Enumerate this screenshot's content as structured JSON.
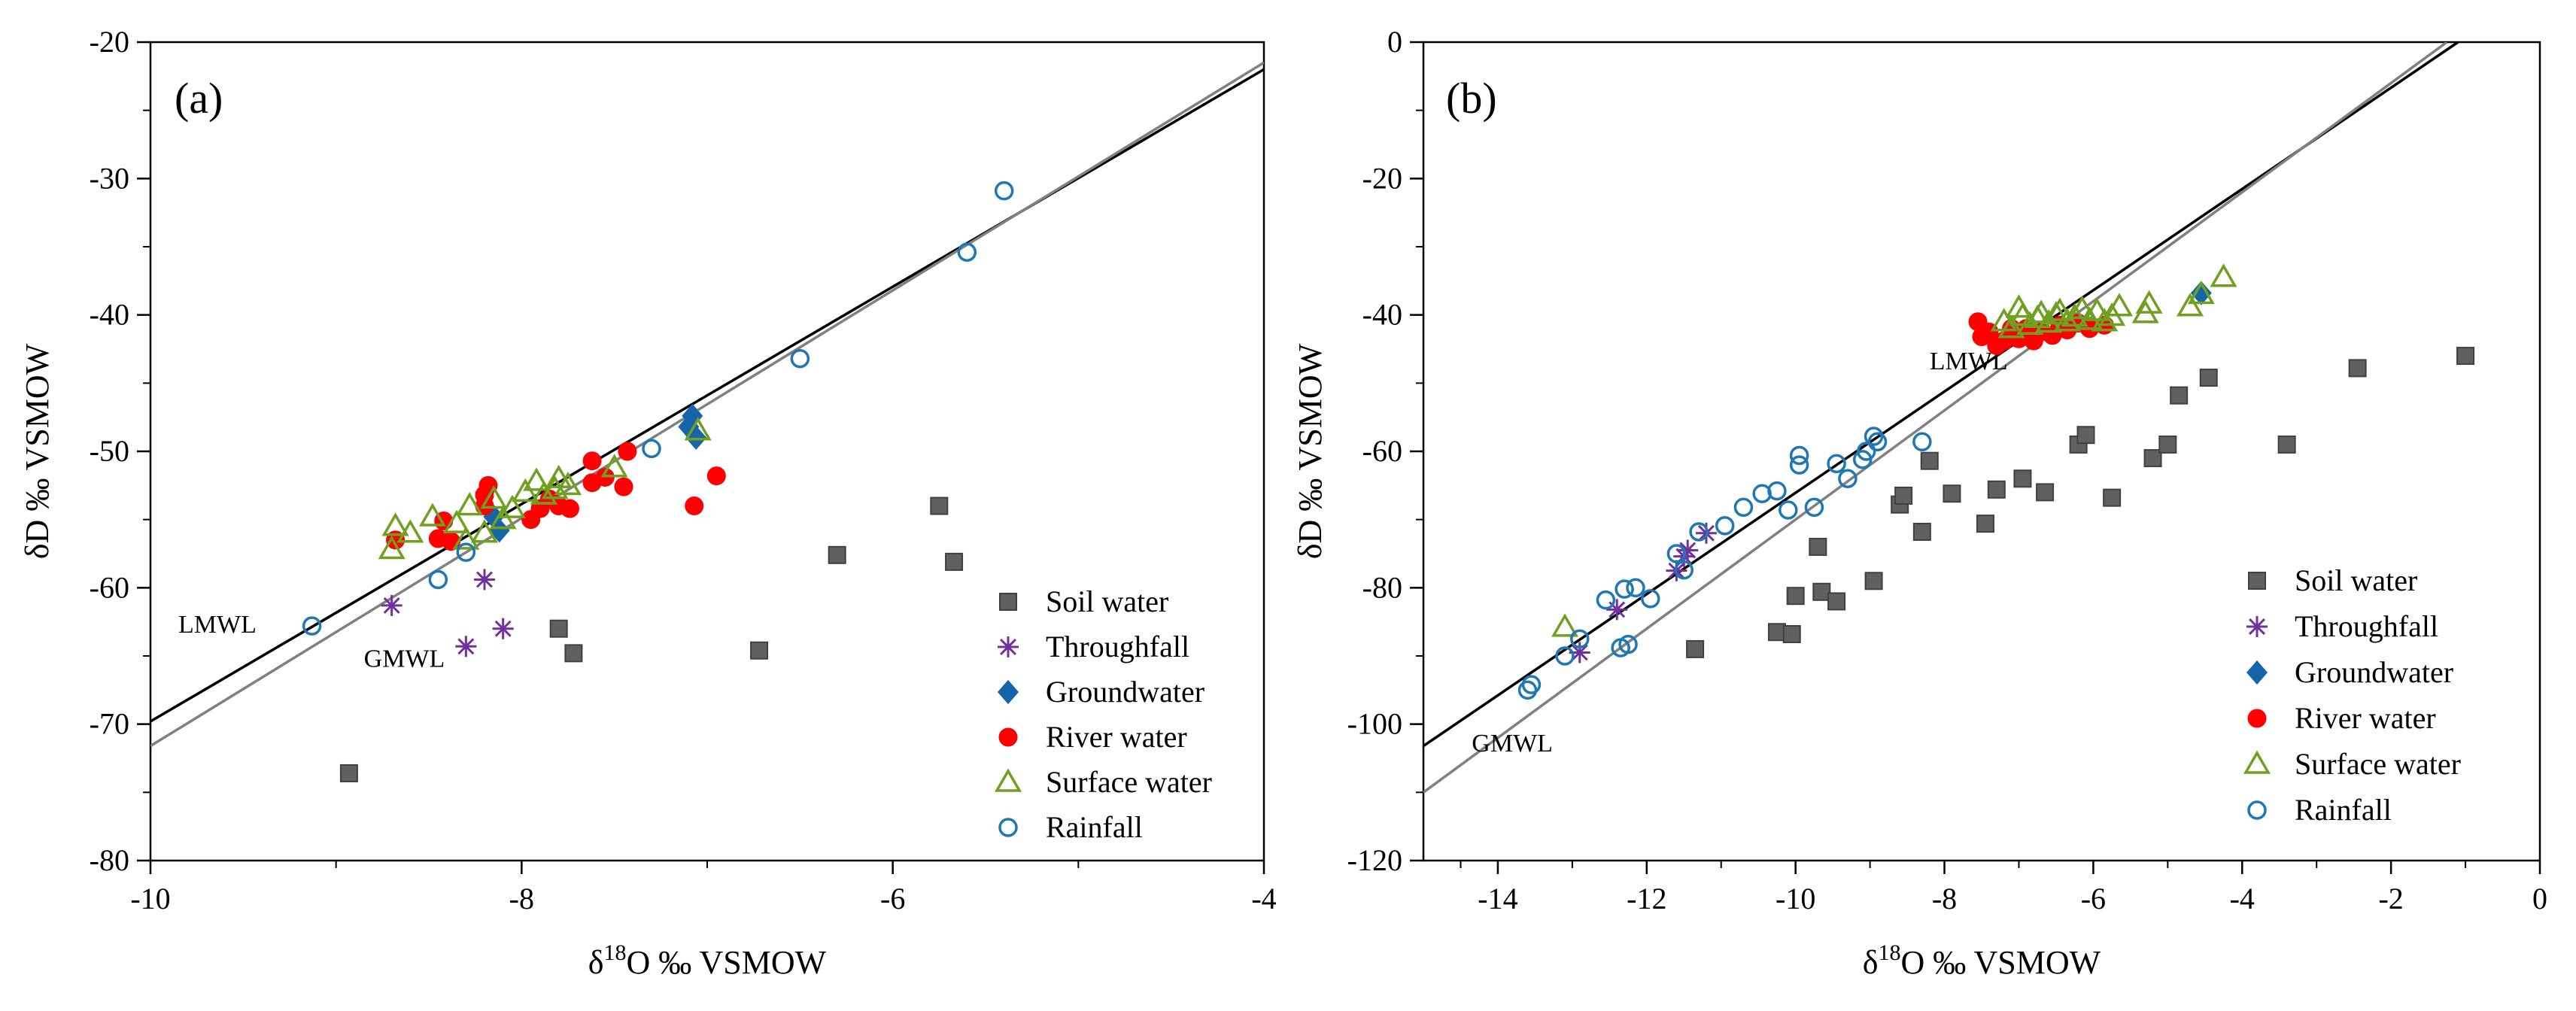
{
  "chart_data": [
    {
      "type": "scatter",
      "panel_label": "(a)",
      "xlabel_prefix": "δ",
      "xlabel_sup": "18",
      "xlabel_suffix": "O ‰ VSMOW",
      "ylabel": "δD ‰ VSMOW",
      "xlim": [
        -10,
        -4
      ],
      "ylim": [
        -80,
        -20
      ],
      "xticks": [
        -10,
        -8,
        -6,
        -4
      ],
      "yticks": [
        -80,
        -70,
        -60,
        -50,
        -40,
        -30,
        -20
      ],
      "xtick_labels": [
        "-10",
        "-8",
        "-6",
        "-4"
      ],
      "ytick_labels": [
        "-80",
        "-70",
        "-60",
        "-50",
        "-40",
        "-30",
        "-20"
      ],
      "legend_position": "bottom-right",
      "lines": [
        {
          "name": "LMWL",
          "label": "LMWL",
          "color": "#000000",
          "x": [
            -10,
            -4
          ],
          "y": [
            -69.8,
            -22.0
          ],
          "label_at": [
            -9.85,
            -63.3
          ]
        },
        {
          "name": "GMWL",
          "label": "GMWL",
          "color": "#808080",
          "x": [
            -10,
            -4
          ],
          "y": [
            -71.6,
            -21.5
          ],
          "label_at": [
            -8.85,
            -65.8
          ]
        }
      ],
      "series": [
        {
          "name": "Soil water",
          "marker": "square",
          "color": "#606060",
          "stroke": "#404040",
          "x": [
            -5.75,
            -5.67,
            -6.3,
            -6.72,
            -7.8,
            -7.72,
            -8.93
          ],
          "y": [
            -54.0,
            -58.1,
            -57.6,
            -64.6,
            -63.0,
            -64.8,
            -73.6
          ]
        },
        {
          "name": "Throughfall",
          "marker": "asterisk",
          "color": "#7030a0",
          "stroke": "#7030a0",
          "x": [
            -8.7,
            -8.2,
            -8.3,
            -8.1
          ],
          "y": [
            -61.3,
            -59.4,
            -64.3,
            -63.0
          ]
        },
        {
          "name": "Groundwater",
          "marker": "diamond",
          "color": "#1565a8",
          "stroke": "#1565a8",
          "x": [
            -8.15,
            -8.12,
            -7.1,
            -7.08,
            -7.06
          ],
          "y": [
            -54.8,
            -55.8,
            -48.2,
            -47.4,
            -49.0
          ]
        },
        {
          "name": "River water",
          "marker": "circle-filled",
          "color": "#ff0000",
          "stroke": "#ff0000",
          "x": [
            -8.68,
            -8.45,
            -8.42,
            -8.38,
            -8.2,
            -8.2,
            -8.18,
            -7.95,
            -7.9,
            -7.85,
            -7.8,
            -7.74,
            -7.62,
            -7.62,
            -7.55,
            -7.45,
            -7.43,
            -7.07,
            -6.95
          ],
          "y": [
            -56.5,
            -56.4,
            -55.1,
            -56.6,
            -53.2,
            -54.0,
            -52.5,
            -55.0,
            -54.2,
            -53.5,
            -54.0,
            -54.2,
            -50.7,
            -52.3,
            -51.9,
            -52.6,
            -50.0,
            -54.0,
            -51.8
          ]
        },
        {
          "name": "Surface water",
          "marker": "triangle-open",
          "color": "#70a020",
          "stroke": "#70a020",
          "x": [
            -8.7,
            -8.68,
            -8.6,
            -8.48,
            -8.35,
            -8.3,
            -8.28,
            -8.2,
            -8.15,
            -8.1,
            -8.05,
            -7.98,
            -7.92,
            -7.88,
            -7.82,
            -7.8,
            -7.75,
            -7.5,
            -7.05
          ],
          "y": [
            -57.2,
            -55.5,
            -56.0,
            -54.8,
            -55.3,
            -56.5,
            -54.0,
            -56.0,
            -53.5,
            -55.0,
            -54.2,
            -53.0,
            -52.2,
            -53.2,
            -52.8,
            -52.0,
            -52.5,
            -51.2,
            -48.5
          ]
        },
        {
          "name": "Rainfall",
          "marker": "circle-open",
          "color": "#1f77b4",
          "stroke": "#1f77b4",
          "x": [
            -9.13,
            -8.45,
            -8.3,
            -7.3,
            -6.5,
            -5.6,
            -5.4
          ],
          "y": [
            -62.8,
            -59.4,
            -57.4,
            -49.8,
            -43.2,
            -35.4,
            -30.9
          ]
        }
      ]
    },
    {
      "type": "scatter",
      "panel_label": "(b)",
      "xlabel_prefix": "δ",
      "xlabel_sup": "18",
      "xlabel_suffix": "O ‰ VSMOW",
      "ylabel": "δD ‰ VSMOW",
      "xlim": [
        -15,
        0
      ],
      "ylim": [
        -120,
        0
      ],
      "xticks": [
        -14,
        -12,
        -10,
        -8,
        -6,
        -4,
        -2,
        0
      ],
      "yticks": [
        -120,
        -100,
        -80,
        -60,
        -40,
        -20,
        0
      ],
      "xtick_labels": [
        "-14",
        "-12",
        "-10",
        "-8",
        "-6",
        "-4",
        "-2",
        "0"
      ],
      "ytick_labels": [
        "-120",
        "-100",
        "-80",
        "-60",
        "-40",
        "-20",
        "0"
      ],
      "legend_position": "bottom-right",
      "lines": [
        {
          "name": "LMWL",
          "label": "LMWL",
          "color": "#000000",
          "x": [
            -15,
            -1.1
          ],
          "y": [
            -103.2,
            0
          ],
          "label_at": [
            -8.2,
            -48.0
          ]
        },
        {
          "name": "GMWL",
          "label": "GMWL",
          "color": "#808080",
          "x": [
            -15,
            -1.25
          ],
          "y": [
            -110,
            0
          ],
          "label_at": [
            -14.35,
            -104.0
          ]
        }
      ],
      "series": [
        {
          "name": "Soil water",
          "marker": "square",
          "color": "#606060",
          "stroke": "#404040",
          "x": [
            -11.35,
            -10.25,
            -10.05,
            -10.0,
            -9.7,
            -9.65,
            -9.45,
            -8.95,
            -8.6,
            -8.55,
            -8.3,
            -8.2,
            -7.9,
            -7.45,
            -7.3,
            -6.95,
            -6.65,
            -6.2,
            -6.1,
            -5.75,
            -5.2,
            -5.0,
            -4.85,
            -4.45,
            -3.4,
            -2.45,
            -1.0
          ],
          "y": [
            -89.0,
            -86.5,
            -86.8,
            -81.2,
            -74.0,
            -80.6,
            -82.0,
            -79.0,
            -67.8,
            -66.5,
            -71.8,
            -61.4,
            -66.2,
            -70.6,
            -65.6,
            -64.0,
            -66.0,
            -59.0,
            -57.6,
            -66.8,
            -61.0,
            -59.0,
            -51.8,
            -49.2,
            -59.0,
            -47.8,
            -46.0
          ]
        },
        {
          "name": "Throughfall",
          "marker": "asterisk",
          "color": "#7030a0",
          "stroke": "#7030a0",
          "x": [
            -12.9,
            -12.4,
            -11.5,
            -11.45,
            -11.2,
            -11.6
          ],
          "y": [
            -89.5,
            -83.2,
            -75.4,
            -74.5,
            -72.0,
            -77.5
          ]
        },
        {
          "name": "Groundwater",
          "marker": "diamond",
          "color": "#1565a8",
          "stroke": "#1565a8",
          "x": [
            -4.55
          ],
          "y": [
            -36.8
          ]
        },
        {
          "name": "River water",
          "marker": "circle-filled",
          "color": "#ff0000",
          "stroke": "#ff0000",
          "x": [
            -7.55,
            -7.5,
            -7.4,
            -7.3,
            -7.2,
            -7.1,
            -7.0,
            -6.9,
            -6.8,
            -6.7,
            -6.55,
            -6.45,
            -6.35,
            -6.2,
            -6.05,
            -5.85
          ],
          "y": [
            -41.0,
            -43.2,
            -42.5,
            -44.5,
            -43.8,
            -42.0,
            -43.5,
            -42.0,
            -43.8,
            -42.5,
            -43.0,
            -41.5,
            -42.2,
            -41.2,
            -42.0,
            -41.5
          ]
        },
        {
          "name": "Surface water",
          "marker": "triangle-open",
          "color": "#70a020",
          "stroke": "#70a020",
          "x": [
            -13.1,
            -7.2,
            -7.1,
            -7.0,
            -6.95,
            -6.85,
            -6.75,
            -6.7,
            -6.6,
            -6.5,
            -6.45,
            -6.35,
            -6.25,
            -6.15,
            -6.05,
            -5.95,
            -5.85,
            -5.75,
            -5.65,
            -5.3,
            -5.25,
            -4.7,
            -4.55,
            -4.25
          ],
          "y": [
            -85.8,
            -41.0,
            -42.0,
            -39.0,
            -40.2,
            -41.5,
            -40.5,
            -39.8,
            -41.2,
            -40.0,
            -39.5,
            -41.0,
            -40.3,
            -39.2,
            -40.8,
            -39.5,
            -41.0,
            -40.2,
            -38.8,
            -39.8,
            -38.4,
            -38.8,
            -37.0,
            -34.5
          ]
        },
        {
          "name": "Rainfall",
          "marker": "circle-open",
          "color": "#1f77b4",
          "stroke": "#1f77b4",
          "x": [
            -13.6,
            -13.55,
            -13.1,
            -12.9,
            -12.55,
            -12.35,
            -12.25,
            -12.3,
            -12.15,
            -11.95,
            -11.6,
            -11.5,
            -11.3,
            -10.95,
            -10.7,
            -10.45,
            -10.25,
            -10.1,
            -9.95,
            -9.95,
            -9.75,
            -9.45,
            -9.3,
            -9.1,
            -9.05,
            -8.95,
            -8.9,
            -8.3
          ],
          "y": [
            -95.0,
            -94.2,
            -90.0,
            -87.5,
            -81.8,
            -88.8,
            -88.3,
            -80.2,
            -80.0,
            -81.6,
            -75.0,
            -77.4,
            -71.8,
            -70.9,
            -68.2,
            -66.2,
            -65.8,
            -68.6,
            -62.0,
            -60.6,
            -68.2,
            -61.8,
            -64.0,
            -61.2,
            -60.0,
            -57.8,
            -58.6,
            -58.6
          ]
        }
      ]
    }
  ]
}
